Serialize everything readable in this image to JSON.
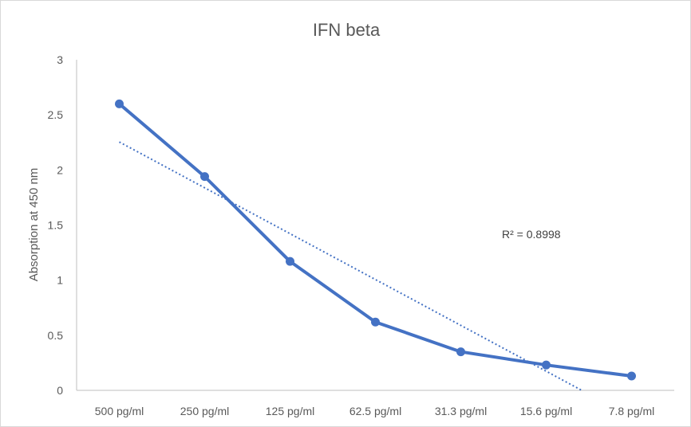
{
  "chart_data": {
    "type": "line",
    "title": "IFN beta",
    "xlabel": "",
    "ylabel": "Absorption at 450 nm",
    "categories": [
      "500 pg/ml",
      "250 pg/ml",
      "125 pg/ml",
      "62.5 pg/ml",
      "31.3 pg/ml",
      "15.6 pg/ml",
      "7.8 pg/ml"
    ],
    "series": [
      {
        "values": [
          2.6,
          1.94,
          1.17,
          0.62,
          0.35,
          0.23,
          0.13
        ],
        "color": "#4472c4",
        "marker": "circle"
      }
    ],
    "trendline": {
      "type": "linear",
      "style": "dotted",
      "color": "#4472c4",
      "label": "R² = 0.8998"
    },
    "ylim": [
      0,
      3
    ],
    "yticks": [
      "0",
      "0.5",
      "1",
      "1.5",
      "2",
      "2.5",
      "3"
    ],
    "grid": false,
    "legend": "none"
  }
}
